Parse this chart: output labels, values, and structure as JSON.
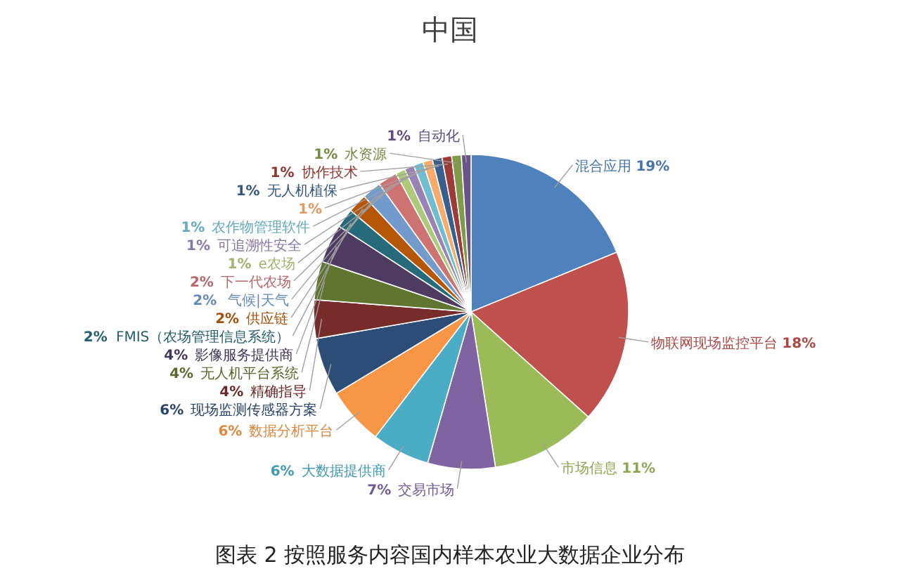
{
  "chart_data": {
    "type": "pie",
    "title": "中国",
    "annotations": [
      "图表 2 按照服务内容国内样本农业大数据企业分布"
    ],
    "categories": [
      "混合应用",
      "物联网现场监控平台",
      "市场信息",
      "交易市场",
      "大数据提供商",
      "数据分析平台",
      "现场监测传感器方案",
      "精确指导",
      "无人机平台系统",
      "影像服务提供商",
      "FMIS（农场管理信息系统）",
      "供应链",
      "气候|天气",
      "下一代农场",
      "e农场",
      "可追溯性安全",
      "农作物管理软件",
      null,
      "无人机植保",
      "协作技术",
      "水资源",
      "自动化"
    ],
    "values": [
      19,
      18,
      11,
      7,
      6,
      6,
      6,
      4,
      4,
      4,
      2,
      2,
      2,
      2,
      1,
      1,
      1,
      1,
      1,
      1,
      1,
      1
    ],
    "value_labels": [
      "19%",
      "18%",
      "11%",
      "7%",
      "6%",
      "6%",
      "6%",
      "4%",
      "4%",
      "4%",
      "2%",
      "2%",
      "2%",
      "2%",
      "1%",
      "1%",
      "1%",
      "1%",
      "1%",
      "1%",
      "1%",
      "1%"
    ],
    "colors": [
      "#4f81bd",
      "#c0504d",
      "#9bbb59",
      "#8064a2",
      "#4bacc6",
      "#f79646",
      "#2c4d75",
      "#772c2a",
      "#5f7530",
      "#4d3b62",
      "#276a7c",
      "#b65708",
      "#729aca",
      "#cd7371",
      "#afc97a",
      "#9983b5",
      "#6fbdd1",
      "#f9ab6b",
      "#3a5f8f",
      "#9e3b38",
      "#7f9a48",
      "#6a5387"
    ]
  }
}
